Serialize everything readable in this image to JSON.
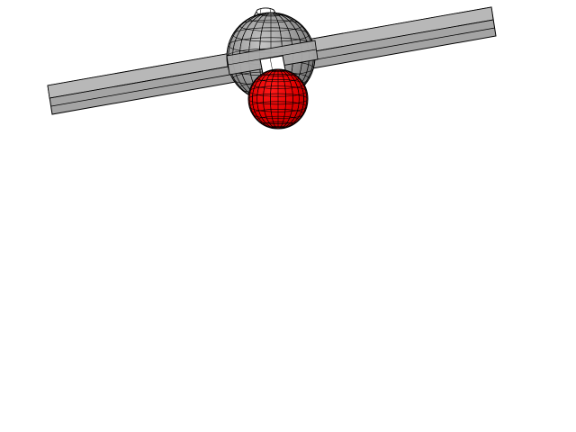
{
  "scene": {
    "background": "#ffffff",
    "objects": [
      {
        "name": "horizontal-bar",
        "color": "#a4a4a4"
      },
      {
        "name": "gray-sphere",
        "color": "#9a9a9a"
      },
      {
        "name": "white-cylinder",
        "color": "#ffffff"
      },
      {
        "name": "red-sphere",
        "color": "#e00000"
      }
    ],
    "wireframe_color": "#000000"
  }
}
